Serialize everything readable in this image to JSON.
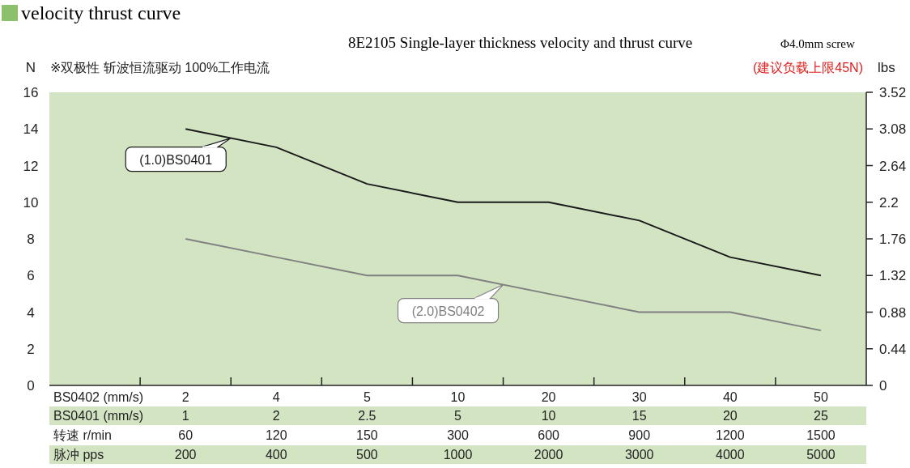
{
  "chart_data": {
    "type": "line",
    "title": "velocity thrust curve",
    "subtitle": "8E2105 Single-layer thickness velocity and thrust curve",
    "ylabel": "N",
    "y2label": "lbs",
    "annotations": [
      "Φ4.0mm screw",
      "※双极性 斩波恒流驱动 100%工作电流",
      "(建议负载上限45N)",
      "BS0402 (mm/s)",
      "BS0401 (mm/s)",
      "转速 r/min",
      "脉冲 pps"
    ],
    "categories": [
      "2\n1\n60\n200",
      "4\n2\n120\n400",
      "5\n2.5\n150\n500",
      "10\n5\n300\n1000",
      "20\n10\n600\n2000",
      "30\n15\n900\n3000",
      "40\n20\n1200\n4000",
      "50\n25\n1500\n5000"
    ],
    "series": [
      {
        "name": "(1.0)BS0401",
        "color": "#1a1a1a",
        "values": [
          14,
          13,
          11,
          10,
          10,
          9,
          7,
          6
        ]
      },
      {
        "name": "(2.0)BS0402",
        "color": "#808080",
        "values": [
          8,
          7,
          6,
          6,
          5,
          4,
          4,
          3
        ]
      }
    ],
    "ylim": [
      0,
      16
    ],
    "yticks": [
      0,
      2,
      4,
      6,
      8,
      10,
      12,
      14,
      16
    ],
    "y2lim": [
      0,
      3.52
    ],
    "y2ticks": [
      0,
      0.44,
      0.88,
      1.32,
      1.76,
      2.2,
      2.64,
      3.08,
      3.52
    ],
    "legend": "left",
    "grid": false,
    "marker": "none",
    "line_style": "solid"
  }
}
